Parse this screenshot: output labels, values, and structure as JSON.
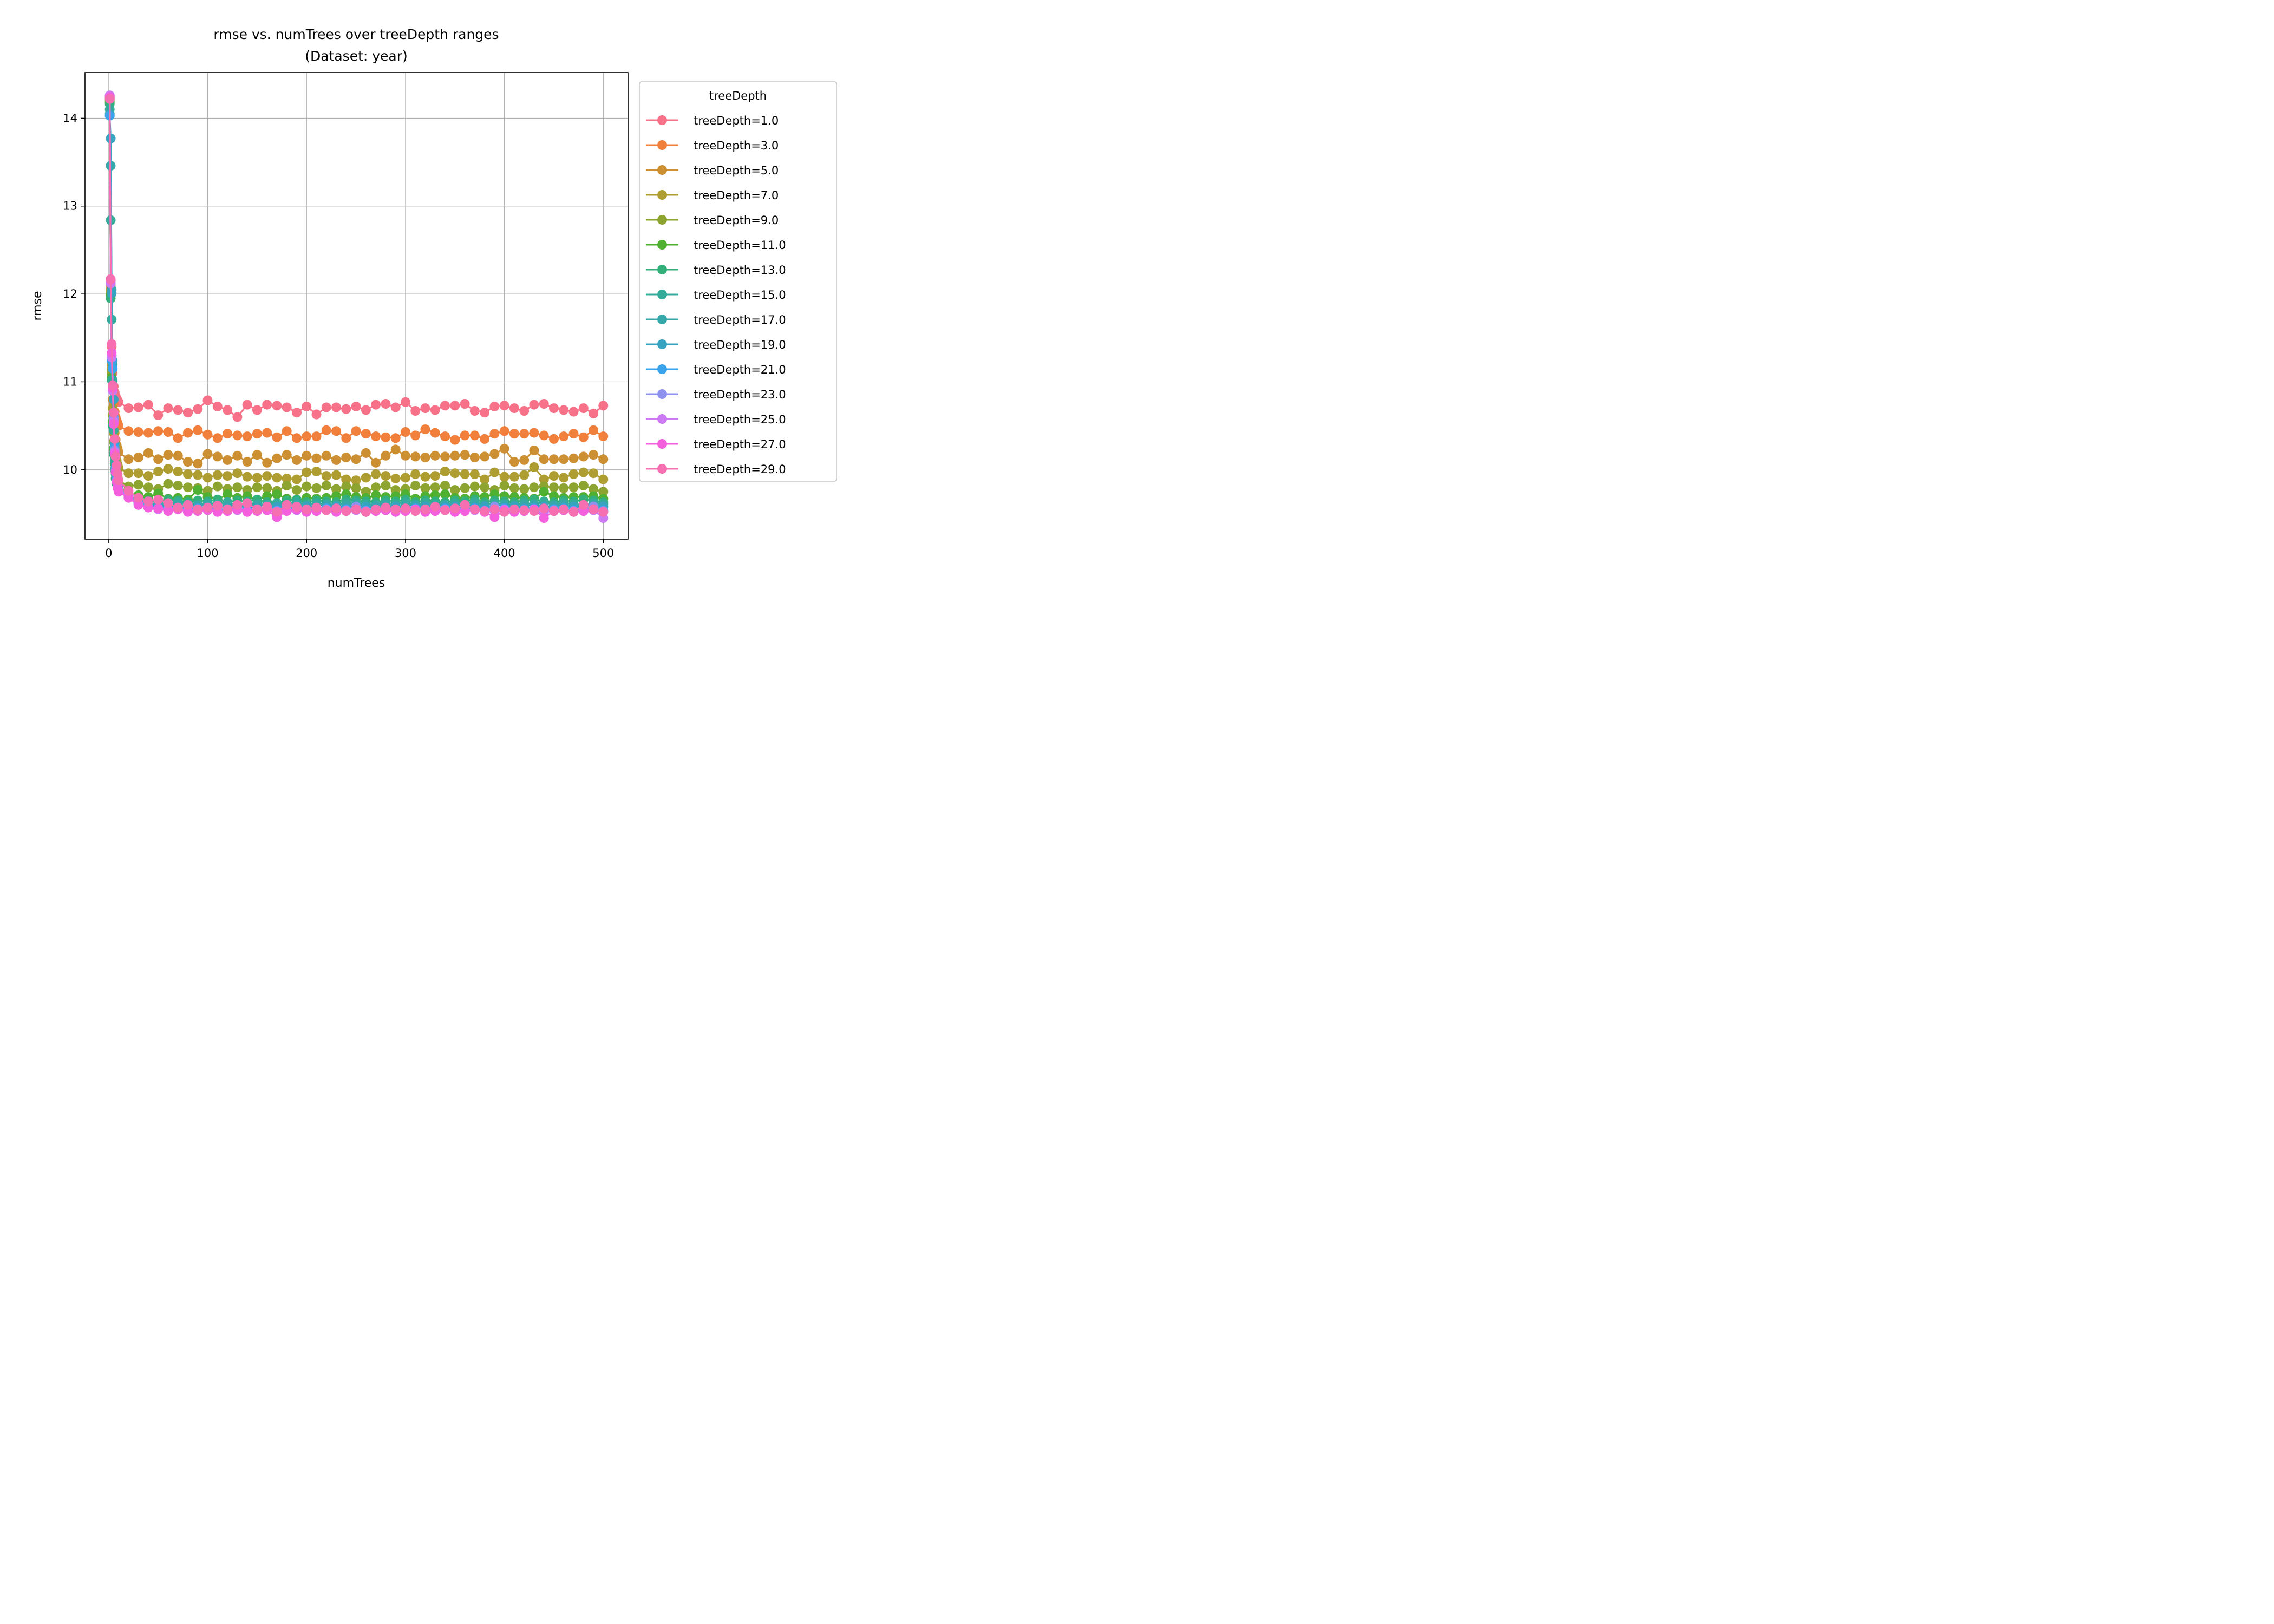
{
  "chart_data": {
    "type": "line",
    "title": "rmse vs. numTrees over treeDepth ranges",
    "subtitle": "(Dataset: year)",
    "xlabel": "numTrees",
    "ylabel": "rmse",
    "xlim": [
      -24,
      525
    ],
    "ylim": [
      9.21,
      14.52
    ],
    "xticks": [
      0,
      100,
      200,
      300,
      400,
      500
    ],
    "yticks": [
      10,
      11,
      12,
      13,
      14
    ],
    "grid": true,
    "legend_title": "treeDepth",
    "legend_position": "outside-right",
    "x": [
      1,
      2,
      3,
      4,
      5,
      6,
      7,
      8,
      9,
      10,
      20,
      30,
      40,
      50,
      60,
      70,
      80,
      90,
      100,
      110,
      120,
      130,
      140,
      150,
      160,
      170,
      180,
      190,
      200,
      210,
      220,
      230,
      240,
      250,
      260,
      270,
      280,
      290,
      300,
      310,
      320,
      330,
      340,
      350,
      360,
      370,
      380,
      390,
      400,
      410,
      420,
      430,
      440,
      450,
      460,
      470,
      480,
      490,
      500
    ],
    "series": [
      {
        "name": "treeDepth=1.0",
        "color": "#f77189",
        "values": [
          14.25,
          12.15,
          11.4,
          11.1,
          10.95,
          10.88,
          10.84,
          10.81,
          10.79,
          10.77,
          10.7,
          10.71,
          10.74,
          10.62,
          10.7,
          10.68,
          10.65,
          10.69,
          10.79,
          10.72,
          10.68,
          10.6,
          10.74,
          10.68,
          10.74,
          10.73,
          10.71,
          10.65,
          10.72,
          10.63,
          10.71,
          10.71,
          10.69,
          10.72,
          10.68,
          10.74,
          10.75,
          10.71,
          10.77,
          10.67,
          10.7,
          10.68,
          10.73,
          10.73,
          10.75,
          10.67,
          10.65,
          10.72,
          10.73,
          10.7,
          10.67,
          10.74,
          10.75,
          10.7,
          10.68,
          10.66,
          10.7,
          10.64,
          10.73
        ]
      },
      {
        "name": "treeDepth=3.0",
        "color": "#f0803b",
        "values": [
          14.23,
          12.1,
          11.3,
          10.95,
          10.75,
          10.66,
          10.6,
          10.56,
          10.53,
          10.5,
          10.44,
          10.43,
          10.42,
          10.44,
          10.43,
          10.36,
          10.42,
          10.45,
          10.4,
          10.36,
          10.41,
          10.39,
          10.38,
          10.41,
          10.42,
          10.37,
          10.44,
          10.36,
          10.38,
          10.38,
          10.45,
          10.44,
          10.36,
          10.44,
          10.41,
          10.38,
          10.37,
          10.36,
          10.43,
          10.39,
          10.46,
          10.42,
          10.38,
          10.34,
          10.39,
          10.39,
          10.35,
          10.41,
          10.44,
          10.41,
          10.41,
          10.42,
          10.39,
          10.35,
          10.38,
          10.41,
          10.37,
          10.45,
          10.38
        ]
      },
      {
        "name": "treeDepth=5.0",
        "color": "#cc8f32",
        "values": [
          14.22,
          12.05,
          11.2,
          10.8,
          10.55,
          10.42,
          10.34,
          10.28,
          10.24,
          10.2,
          10.12,
          10.14,
          10.19,
          10.12,
          10.17,
          10.16,
          10.09,
          10.07,
          10.18,
          10.15,
          10.11,
          10.16,
          10.09,
          10.17,
          10.08,
          10.13,
          10.17,
          10.11,
          10.16,
          10.13,
          10.16,
          10.11,
          10.14,
          10.12,
          10.19,
          10.08,
          10.16,
          10.23,
          10.16,
          10.15,
          10.14,
          10.16,
          10.15,
          10.16,
          10.17,
          10.14,
          10.15,
          10.18,
          10.24,
          10.09,
          10.11,
          10.22,
          10.12,
          10.12,
          10.12,
          10.13,
          10.15,
          10.17,
          10.12
        ]
      },
      {
        "name": "treeDepth=7.0",
        "color": "#ae9d31",
        "values": [
          14.21,
          12.02,
          11.15,
          10.7,
          10.42,
          10.28,
          10.18,
          10.11,
          10.06,
          10.02,
          9.96,
          9.96,
          9.93,
          9.98,
          10.01,
          9.98,
          9.95,
          9.94,
          9.91,
          9.94,
          9.93,
          9.96,
          9.92,
          9.91,
          9.93,
          9.91,
          9.9,
          9.89,
          9.97,
          9.98,
          9.93,
          9.94,
          9.89,
          9.88,
          9.91,
          9.95,
          9.93,
          9.9,
          9.91,
          9.95,
          9.92,
          9.93,
          9.98,
          9.96,
          9.95,
          9.95,
          9.89,
          9.97,
          9.92,
          9.92,
          9.94,
          10.03,
          9.89,
          9.93,
          9.91,
          9.95,
          9.97,
          9.96,
          9.89
        ]
      },
      {
        "name": "treeDepth=9.0",
        "color": "#8ea431",
        "values": [
          14.2,
          12.0,
          11.1,
          10.62,
          10.32,
          10.16,
          10.04,
          9.96,
          9.92,
          9.88,
          9.81,
          9.83,
          9.8,
          9.78,
          9.84,
          9.82,
          9.8,
          9.79,
          9.76,
          9.81,
          9.78,
          9.8,
          9.77,
          9.8,
          9.79,
          9.76,
          9.82,
          9.77,
          9.81,
          9.79,
          9.82,
          9.78,
          9.81,
          9.79,
          9.75,
          9.8,
          9.82,
          9.77,
          9.78,
          9.82,
          9.79,
          9.8,
          9.82,
          9.77,
          9.79,
          9.81,
          9.8,
          9.77,
          9.82,
          9.79,
          9.78,
          9.8,
          9.81,
          9.8,
          9.79,
          9.8,
          9.82,
          9.78,
          9.75
        ]
      },
      {
        "name": "treeDepth=11.0",
        "color": "#4fb031",
        "values": [
          14.18,
          11.98,
          11.05,
          10.55,
          10.24,
          10.07,
          9.96,
          9.89,
          9.85,
          9.82,
          9.73,
          9.71,
          9.69,
          9.73,
          9.67,
          9.68,
          9.66,
          9.77,
          9.69,
          9.66,
          9.72,
          9.68,
          9.7,
          9.66,
          9.7,
          9.72,
          9.67,
          9.65,
          9.68,
          9.67,
          9.68,
          9.7,
          9.72,
          9.69,
          9.68,
          9.71,
          9.69,
          9.7,
          9.72,
          9.67,
          9.7,
          9.71,
          9.72,
          9.68,
          9.67,
          9.7,
          9.69,
          9.72,
          9.7,
          9.69,
          9.68,
          9.67,
          9.75,
          9.7,
          9.68,
          9.69,
          9.69,
          9.7,
          9.67
        ]
      },
      {
        "name": "treeDepth=13.0",
        "color": "#33b07a",
        "values": [
          14.16,
          11.95,
          11.02,
          10.5,
          10.18,
          10.0,
          9.9,
          9.84,
          9.8,
          9.77,
          9.7,
          9.66,
          9.65,
          9.64,
          9.66,
          9.65,
          9.63,
          9.65,
          9.64,
          9.66,
          9.63,
          9.65,
          9.64,
          9.66,
          9.63,
          9.62,
          9.65,
          9.66,
          9.63,
          9.65,
          9.64,
          9.63,
          9.66,
          9.65,
          9.64,
          9.63,
          9.65,
          9.64,
          9.66,
          9.63,
          9.65,
          9.64,
          9.63,
          9.65,
          9.64,
          9.66,
          9.63,
          9.65,
          9.64,
          9.63,
          9.65,
          9.66,
          9.64,
          9.63,
          9.65,
          9.64,
          9.66,
          9.65,
          9.63
        ]
      },
      {
        "name": "treeDepth=15.0",
        "color": "#35ac9a",
        "values": [
          14.1,
          12.84,
          11.71,
          11.02,
          10.45,
          10.1,
          9.95,
          9.87,
          9.82,
          9.78,
          9.72,
          9.64,
          9.62,
          9.61,
          9.62,
          9.63,
          9.61,
          9.6,
          9.62,
          9.61,
          9.63,
          9.6,
          9.62,
          9.61,
          9.6,
          9.62,
          9.61,
          9.63,
          9.6,
          9.62,
          9.61,
          9.6,
          9.62,
          9.63,
          9.61,
          9.6,
          9.62,
          9.61,
          9.63,
          9.6,
          9.62,
          9.61,
          9.6,
          9.62,
          9.61,
          9.63,
          9.6,
          9.62,
          9.61,
          9.6,
          9.62,
          9.61,
          9.63,
          9.6,
          9.62,
          9.61,
          9.6,
          9.62,
          9.61
        ]
      },
      {
        "name": "treeDepth=17.0",
        "color": "#36a8aa",
        "values": [
          14.05,
          13.46,
          12.05,
          11.2,
          10.65,
          10.2,
          9.99,
          9.88,
          9.82,
          9.78,
          9.71,
          9.63,
          9.6,
          9.6,
          9.59,
          9.6,
          9.58,
          9.59,
          9.6,
          9.58,
          9.59,
          9.6,
          9.58,
          9.59,
          9.6,
          9.58,
          9.59,
          9.6,
          9.58,
          9.59,
          9.6,
          9.58,
          9.59,
          9.6,
          9.58,
          9.59,
          9.6,
          9.58,
          9.59,
          9.6,
          9.58,
          9.59,
          9.6,
          9.58,
          9.59,
          9.6,
          9.58,
          9.59,
          9.6,
          9.58,
          9.59,
          9.6,
          9.58,
          9.59,
          9.6,
          9.58,
          9.59,
          9.6,
          9.58
        ]
      },
      {
        "name": "treeDepth=19.0",
        "color": "#38a3c0",
        "values": [
          14.03,
          13.77,
          12.01,
          11.24,
          10.8,
          10.3,
          10.05,
          9.92,
          9.84,
          9.79,
          9.72,
          9.63,
          9.59,
          9.58,
          9.58,
          9.57,
          9.58,
          9.56,
          9.57,
          9.58,
          9.56,
          9.57,
          9.58,
          9.56,
          9.57,
          9.58,
          9.56,
          9.57,
          9.58,
          9.56,
          9.57,
          9.58,
          9.56,
          9.57,
          9.58,
          9.56,
          9.57,
          9.58,
          9.56,
          9.57,
          9.58,
          9.56,
          9.57,
          9.58,
          9.56,
          9.57,
          9.58,
          9.56,
          9.57,
          9.58,
          9.56,
          9.57,
          9.58,
          9.56,
          9.57,
          9.58,
          9.56,
          9.57,
          9.58
        ]
      },
      {
        "name": "treeDepth=21.0",
        "color": "#3ba3ec",
        "values": [
          14.03,
          12.12,
          11.24,
          11.15,
          10.6,
          10.25,
          10.02,
          9.9,
          9.83,
          9.78,
          9.71,
          9.62,
          9.59,
          9.57,
          9.56,
          9.57,
          9.55,
          9.56,
          9.57,
          9.54,
          9.55,
          9.56,
          9.54,
          9.55,
          9.56,
          9.54,
          9.55,
          9.56,
          9.54,
          9.55,
          9.56,
          9.54,
          9.55,
          9.56,
          9.54,
          9.55,
          9.56,
          9.54,
          9.55,
          9.56,
          9.54,
          9.55,
          9.56,
          9.54,
          9.55,
          9.56,
          9.54,
          9.55,
          9.56,
          9.54,
          9.55,
          9.56,
          9.54,
          9.55,
          9.56,
          9.54,
          9.55,
          9.56,
          9.54
        ]
      },
      {
        "name": "treeDepth=23.0",
        "color": "#8e92ee",
        "values": [
          14.24,
          12.16,
          11.3,
          10.95,
          10.58,
          10.22,
          10.0,
          9.88,
          9.81,
          9.77,
          9.7,
          9.61,
          9.58,
          9.56,
          9.55,
          9.56,
          9.54,
          9.55,
          9.56,
          9.53,
          9.54,
          9.55,
          9.53,
          9.54,
          9.55,
          9.53,
          9.54,
          9.55,
          9.53,
          9.54,
          9.55,
          9.53,
          9.54,
          9.58,
          9.53,
          9.54,
          9.55,
          9.53,
          9.54,
          9.55,
          9.53,
          9.54,
          9.55,
          9.53,
          9.54,
          9.55,
          9.53,
          9.58,
          9.55,
          9.53,
          9.54,
          9.55,
          9.53,
          9.54,
          9.55,
          9.53,
          9.54,
          9.58,
          9.53
        ]
      },
      {
        "name": "treeDepth=25.0",
        "color": "#cc7af4",
        "values": [
          14.26,
          12.12,
          11.28,
          10.9,
          10.55,
          10.2,
          9.98,
          9.87,
          9.8,
          9.76,
          9.69,
          9.6,
          9.57,
          9.55,
          9.54,
          9.55,
          9.53,
          9.54,
          9.55,
          9.52,
          9.53,
          9.54,
          9.52,
          9.53,
          9.54,
          9.52,
          9.53,
          9.54,
          9.52,
          9.53,
          9.54,
          9.52,
          9.53,
          9.54,
          9.52,
          9.53,
          9.54,
          9.52,
          9.53,
          9.54,
          9.52,
          9.53,
          9.54,
          9.52,
          9.53,
          9.54,
          9.52,
          9.53,
          9.54,
          9.52,
          9.53,
          9.54,
          9.52,
          9.53,
          9.54,
          9.52,
          9.53,
          9.54,
          9.45
        ]
      },
      {
        "name": "treeDepth=27.0",
        "color": "#f45fde",
        "values": [
          14.24,
          12.16,
          11.33,
          10.93,
          10.52,
          10.18,
          9.97,
          9.86,
          9.79,
          9.75,
          9.68,
          9.6,
          9.57,
          9.56,
          9.53,
          9.55,
          9.52,
          9.53,
          9.54,
          9.52,
          9.53,
          9.55,
          9.52,
          9.53,
          9.54,
          9.46,
          9.53,
          9.55,
          9.52,
          9.53,
          9.54,
          9.52,
          9.53,
          9.55,
          9.52,
          9.53,
          9.54,
          9.52,
          9.53,
          9.55,
          9.52,
          9.53,
          9.54,
          9.52,
          9.53,
          9.55,
          9.52,
          9.46,
          9.54,
          9.52,
          9.53,
          9.55,
          9.45,
          9.53,
          9.54,
          9.52,
          9.53,
          9.55,
          9.52
        ]
      },
      {
        "name": "treeDepth=29.0",
        "color": "#f66fb0",
        "values": [
          14.22,
          12.17,
          11.43,
          10.96,
          10.65,
          10.35,
          10.15,
          10.05,
          9.95,
          9.88,
          9.76,
          9.68,
          9.64,
          9.66,
          9.62,
          9.57,
          9.6,
          9.55,
          9.57,
          9.59,
          9.55,
          9.6,
          9.62,
          9.55,
          9.58,
          9.52,
          9.6,
          9.58,
          9.55,
          9.57,
          9.54,
          9.56,
          9.53,
          9.55,
          9.52,
          9.55,
          9.57,
          9.55,
          9.56,
          9.53,
          9.55,
          9.58,
          9.54,
          9.56,
          9.6,
          9.55,
          9.53,
          9.55,
          9.52,
          9.55,
          9.54,
          9.53,
          9.56,
          9.53,
          9.55,
          9.52,
          9.6,
          9.55,
          9.52
        ]
      }
    ]
  }
}
